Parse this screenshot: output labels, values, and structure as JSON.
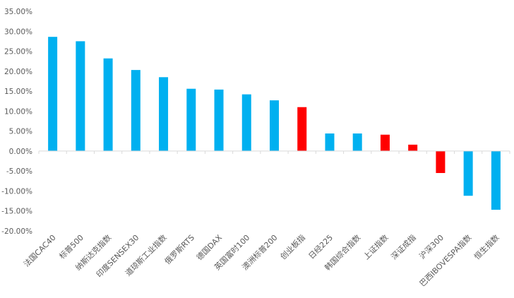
{
  "chart_data": {
    "type": "bar",
    "title": "",
    "xlabel": "",
    "ylabel": "",
    "ylim": [
      -20,
      35
    ],
    "yticks": [
      35,
      30,
      25,
      20,
      15,
      10,
      5,
      0,
      -5,
      -10,
      -15,
      -20
    ],
    "ytick_labels": [
      "35.00%",
      "30.00%",
      "25.00%",
      "20.00%",
      "15.00%",
      "10.00%",
      "5.00%",
      "0.00%",
      "-5.00%",
      "-10.00%",
      "-15.00%",
      "-20.00%"
    ],
    "grid": false,
    "legend": "none",
    "categories": [
      "法国CAC40",
      "标普500",
      "纳斯达克指数",
      "印度SENSEX30",
      "道琼斯工业指数",
      "俄罗斯RTS",
      "德国DAX",
      "英国富时100",
      "澳洲标普200",
      "创业板指",
      "日经225",
      "韩国综合指数",
      "上证指数",
      "深证成指",
      "沪深300",
      "巴西IBOVESPA指数",
      "恒生指数"
    ],
    "values": [
      28.6,
      27.5,
      23.2,
      20.3,
      18.5,
      15.6,
      15.4,
      14.2,
      12.7,
      11.0,
      4.4,
      4.4,
      4.1,
      1.6,
      -5.5,
      -11.2,
      -14.7
    ],
    "bar_colors": [
      "#00B0F0",
      "#00B0F0",
      "#00B0F0",
      "#00B0F0",
      "#00B0F0",
      "#00B0F0",
      "#00B0F0",
      "#00B0F0",
      "#00B0F0",
      "#FF0000",
      "#00B0F0",
      "#00B0F0",
      "#FF0000",
      "#FF0000",
      "#FF0000",
      "#00B0F0",
      "#00B0F0"
    ],
    "axis_color": "#D9D9D9"
  }
}
